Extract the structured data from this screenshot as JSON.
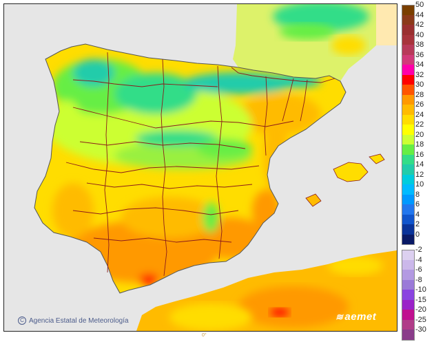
{
  "map": {
    "credit": "Agencia Estatal de Meteorología",
    "credit_icon": "copyright-icon",
    "brand": "aemet",
    "brand_icon": "aemet-logo-icon",
    "lon_label": "0°",
    "colors": {
      "sea": "#e6e6e6",
      "border": "#8b1a1a"
    }
  },
  "legend": {
    "positive": [
      {
        "label": "50",
        "color": "#7a3f00"
      },
      {
        "label": "44",
        "color": "#8b3a1a"
      },
      {
        "label": "42",
        "color": "#9a3030"
      },
      {
        "label": "40",
        "color": "#a8343c"
      },
      {
        "label": "38",
        "color": "#b83a5a"
      },
      {
        "label": "36",
        "color": "#d23a7a"
      },
      {
        "label": "34",
        "color": "#ff00aa"
      },
      {
        "label": "32",
        "color": "#ff0000"
      },
      {
        "label": "30",
        "color": "#ff5500"
      },
      {
        "label": "28",
        "color": "#ff9900"
      },
      {
        "label": "26",
        "color": "#ffbb00"
      },
      {
        "label": "24",
        "color": "#ffdd00"
      },
      {
        "label": "22",
        "color": "#ffff00"
      },
      {
        "label": "20",
        "color": "#ccff33"
      },
      {
        "label": "18",
        "color": "#66ee44"
      },
      {
        "label": "16",
        "color": "#33dd88"
      },
      {
        "label": "14",
        "color": "#22ccaa"
      },
      {
        "label": "12",
        "color": "#00ccdd"
      },
      {
        "label": "10",
        "color": "#00bbff"
      },
      {
        "label": "8",
        "color": "#0099ff"
      },
      {
        "label": "6",
        "color": "#2277ee"
      },
      {
        "label": "4",
        "color": "#1155cc"
      },
      {
        "label": "2",
        "color": "#0a3399"
      },
      {
        "label": "0",
        "color": "#0a1a66"
      }
    ],
    "negative": [
      {
        "label": "-2",
        "color": "#dcd0f0"
      },
      {
        "label": "-4",
        "color": "#cbb8ea"
      },
      {
        "label": "-6",
        "color": "#b39ae2"
      },
      {
        "label": "-8",
        "color": "#9a7ad8"
      },
      {
        "label": "-10",
        "color": "#8a44e0"
      },
      {
        "label": "-15",
        "color": "#9a22c8"
      },
      {
        "label": "-20",
        "color": "#c01090"
      },
      {
        "label": "-25",
        "color": "#b03c88"
      },
      {
        "label": "-30",
        "color": "#8a3c8a"
      }
    ]
  }
}
